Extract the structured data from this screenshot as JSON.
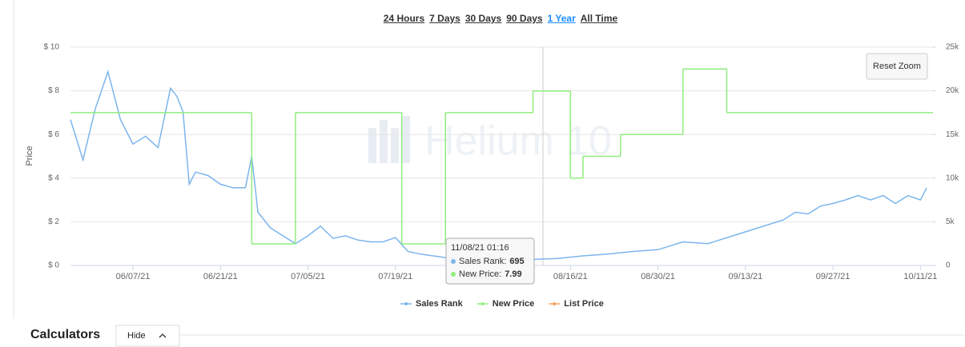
{
  "range_buttons": [
    "24 Hours",
    "7 Days",
    "30 Days",
    "90 Days",
    "1 Year",
    "All Time"
  ],
  "active_range": 4,
  "reset_zoom": "Reset Zoom",
  "watermark": "Helium 10",
  "section": {
    "title": "Calculators",
    "button": "Hide"
  },
  "chart_data": {
    "type": "line",
    "y_label": "Price",
    "xlim": [
      "05/28/21",
      "10/13/21"
    ],
    "xticks": [
      "06/07/21",
      "06/21/21",
      "07/05/21",
      "07/19/21",
      "08/02/21",
      "08/16/21",
      "08/30/21",
      "09/13/21",
      "09/27/21",
      "10/11/21"
    ],
    "ylim": [
      0,
      10
    ],
    "yticks": [
      {
        "value": 0,
        "label": "$ 0"
      },
      {
        "value": 2,
        "label": "$ 2"
      },
      {
        "value": 4,
        "label": "$ 4"
      },
      {
        "value": 6,
        "label": "$ 6"
      },
      {
        "value": 8,
        "label": "$ 8"
      },
      {
        "value": 10,
        "label": "$ 10"
      }
    ],
    "y2lim": [
      0,
      25000
    ],
    "y2ticks": [
      0,
      {
        "value": 5000,
        "label": "5k"
      },
      {
        "value": 10000,
        "label": "10k"
      },
      {
        "value": 15000,
        "label": "15k"
      },
      {
        "value": 20000,
        "label": "20k"
      },
      {
        "value": 25000,
        "label": "25k"
      }
    ],
    "series": [
      {
        "name": "Sales Rank",
        "color": "#7cb5ec",
        "axis": "y2",
        "step": false,
        "x": [
          "05/28/21",
          "05/30/21",
          "06/01/21",
          "06/03/21",
          "06/05/21",
          "06/07/21",
          "06/09/21",
          "06/11/21",
          "06/13/21",
          "06/14/21",
          "06/15/21",
          "06/16/21",
          "06/17/21",
          "06/19/21",
          "06/21/21",
          "06/23/21",
          "06/25/21",
          "06/26/21",
          "06/27/21",
          "06/29/21",
          "07/01/21",
          "07/03/21",
          "07/05/21",
          "07/07/21",
          "07/09/21",
          "07/11/21",
          "07/13/21",
          "07/15/21",
          "07/17/21",
          "07/19/21",
          "07/21/21",
          "07/23/21",
          "07/25/21",
          "07/27/21",
          "07/31/21",
          "08/04/21",
          "08/08/21",
          "08/10/21",
          "08/14/21",
          "08/18/21",
          "08/22/21",
          "08/26/21",
          "08/30/21",
          "09/03/21",
          "09/07/21",
          "09/11/21",
          "09/15/21",
          "09/19/21",
          "09/21/21",
          "09/23/21",
          "09/25/21",
          "09/27/21",
          "09/29/21",
          "10/01/21",
          "10/03/21",
          "10/05/21",
          "10/07/21",
          "10/09/21",
          "10/11/21",
          "10/12/21"
        ],
        "values": [
          16700,
          12100,
          18000,
          22200,
          16700,
          13900,
          14800,
          13500,
          20300,
          19400,
          17600,
          9300,
          10700,
          10300,
          9300,
          8900,
          8900,
          12500,
          6100,
          4300,
          3400,
          2500,
          3400,
          4500,
          3100,
          3400,
          2900,
          2700,
          2700,
          3200,
          1600,
          1300,
          1100,
          900,
          900,
          800,
          700,
          695,
          800,
          1100,
          1300,
          1600,
          1800,
          2700,
          2500,
          3400,
          4300,
          5200,
          6100,
          5900,
          6800,
          7100,
          7500,
          8000,
          7500,
          8000,
          7100,
          8000,
          7500,
          8900
        ]
      },
      {
        "name": "New Price",
        "color": "#90ed7d",
        "axis": "y",
        "step": true,
        "x": [
          "05/28/21",
          "06/26/21",
          "07/03/21",
          "07/20/21",
          "07/27/21",
          "08/10/21",
          "08/16/21",
          "08/18/21",
          "08/24/21",
          "09/03/21",
          "09/10/21"
        ],
        "values": [
          7,
          0.99,
          7,
          0.99,
          7,
          7.99,
          4,
          5,
          6,
          9,
          7
        ]
      },
      {
        "name": "List Price",
        "color": "#f7a35c",
        "axis": "y",
        "step": true,
        "x": [],
        "values": []
      }
    ],
    "tooltip": {
      "date": "11/08/21 01:16",
      "rows": [
        {
          "label": "Sales Rank:",
          "value": 695
        },
        {
          "label": "New Price:",
          "value": 7.99
        }
      ]
    }
  }
}
